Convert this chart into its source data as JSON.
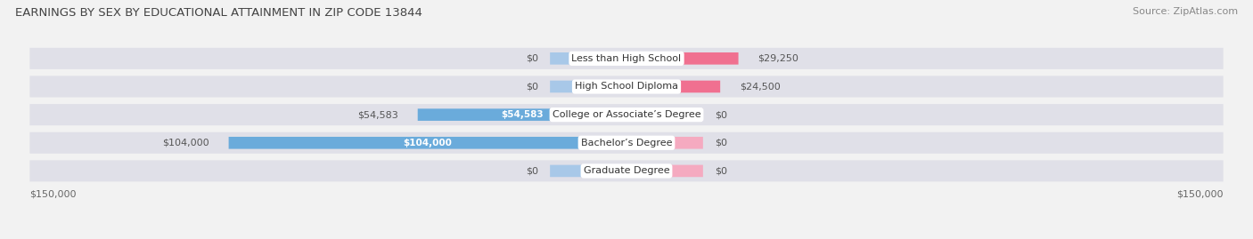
{
  "title": "EARNINGS BY SEX BY EDUCATIONAL ATTAINMENT IN ZIP CODE 13844",
  "source": "Source: ZipAtlas.com",
  "categories": [
    "Less than High School",
    "High School Diploma",
    "College or Associate’s Degree",
    "Bachelor’s Degree",
    "Graduate Degree"
  ],
  "male_values": [
    0,
    0,
    54583,
    104000,
    0
  ],
  "female_values": [
    29250,
    24500,
    0,
    0,
    0
  ],
  "male_labels": [
    "$0",
    "$0",
    "$54,583",
    "$104,000",
    "$0"
  ],
  "female_labels": [
    "$29,250",
    "$24,500",
    "$0",
    "$0",
    "$0"
  ],
  "male_color": "#6aabdb",
  "female_color": "#f07090",
  "male_placeholder_color": "#a8c8e8",
  "female_placeholder_color": "#f5aac0",
  "max_val": 150000,
  "placeholder_val": 20000,
  "background_color": "#f2f2f2",
  "row_bg_color": "#e0e0e8",
  "title_fontsize": 9.5,
  "label_fontsize": 8
}
